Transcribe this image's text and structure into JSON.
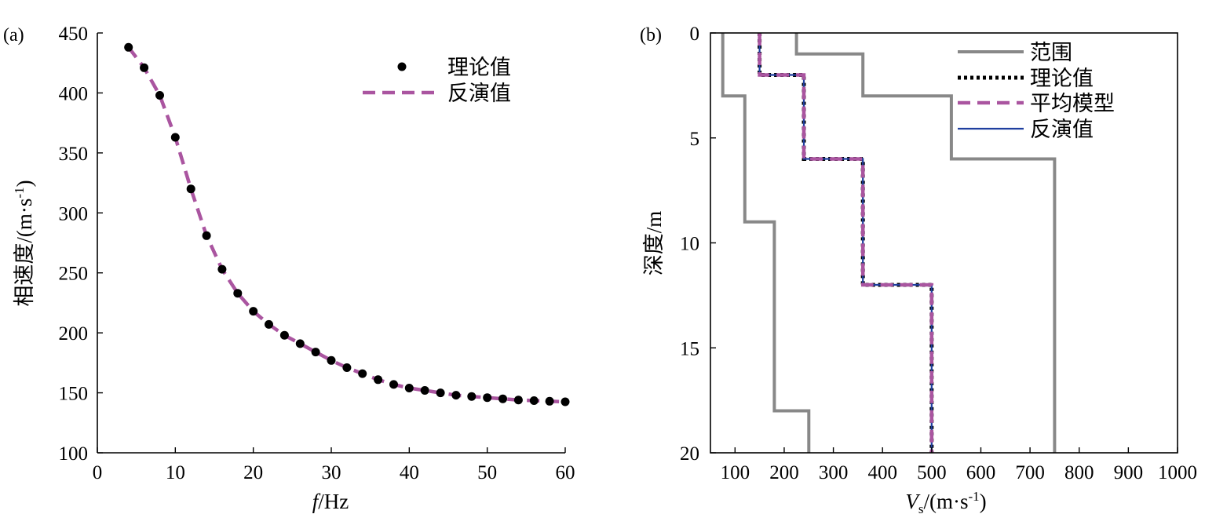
{
  "chart_data": [
    {
      "type": "scatter",
      "panel_label": "(a)",
      "xlabel_italic": "f",
      "xlabel_rest": "/Hz",
      "ylabel": "相速度/(m·s",
      "ylabel_sup": "-1",
      "ylabel_close": ")",
      "xlim": [
        0,
        60
      ],
      "ylim": [
        100,
        450
      ],
      "xticks": [
        "0",
        "10",
        "20",
        "30",
        "40",
        "50",
        "60"
      ],
      "yticks": [
        "100",
        "150",
        "200",
        "250",
        "300",
        "350",
        "400",
        "450"
      ],
      "legend_position": "top-right",
      "series": [
        {
          "name": "理论值",
          "style": "markers",
          "color": "#000000",
          "x": [
            4,
            6,
            8,
            10,
            12,
            14,
            16,
            18,
            20,
            22,
            24,
            26,
            28,
            30,
            32,
            34,
            36,
            38,
            40,
            42,
            44,
            46,
            48,
            50,
            52,
            54,
            56,
            58,
            60
          ],
          "y": [
            438,
            421,
            398,
            363,
            320,
            281,
            253,
            233,
            218,
            207,
            198,
            191,
            184,
            177,
            171,
            166,
            161,
            157,
            154,
            152,
            150,
            148,
            147,
            146,
            145,
            144,
            143.5,
            143,
            142.5
          ]
        },
        {
          "name": "反演值",
          "style": "dashed",
          "color": "#aa55a0",
          "x": [
            4,
            6,
            8,
            10,
            12,
            14,
            16,
            18,
            20,
            22,
            24,
            26,
            28,
            30,
            32,
            34,
            36,
            38,
            40,
            42,
            44,
            46,
            48,
            50,
            52,
            54,
            56,
            58,
            60
          ],
          "y": [
            438,
            421,
            398,
            363,
            320,
            281,
            253,
            233,
            218,
            207,
            198,
            191,
            184,
            177,
            171,
            166,
            161,
            157,
            154,
            152,
            150,
            148,
            147,
            146,
            145,
            144,
            143.5,
            143,
            142.5
          ]
        }
      ]
    },
    {
      "type": "line",
      "panel_label": "(b)",
      "xlabel_italic": "V",
      "xlabel_sub": "s",
      "xlabel_rest": "/(m·s",
      "xlabel_sup": "-1",
      "xlabel_close": ")",
      "ylabel": "深度/m",
      "xlim": [
        50,
        1000
      ],
      "ylim": [
        0,
        20
      ],
      "y_inverted": true,
      "xticks": [
        "100",
        "200",
        "300",
        "400",
        "500",
        "600",
        "700",
        "800",
        "900",
        "1000"
      ],
      "yticks": [
        "0",
        "5",
        "10",
        "15",
        "20"
      ],
      "legend_position": "top-right",
      "series": [
        {
          "name": "范围",
          "style": "solid-thick",
          "color": "#888888",
          "segments": [
            {
              "x": [
                75,
                75,
                120,
                120,
                180,
                180,
                250,
                250
              ],
              "y": [
                0,
                3,
                3,
                9,
                9,
                18,
                18,
                20
              ]
            },
            {
              "x": [
                225,
                225,
                360,
                360,
                540,
                540,
                750,
                750
              ],
              "y": [
                0,
                1,
                1,
                3,
                3,
                6,
                6,
                20
              ]
            }
          ]
        },
        {
          "name": "理论值",
          "style": "dotted",
          "color": "#000000",
          "x": [
            150,
            150,
            240,
            240,
            360,
            360,
            500,
            500
          ],
          "y": [
            0,
            2,
            2,
            6,
            6,
            12,
            12,
            20
          ]
        },
        {
          "name": "平均模型",
          "style": "dashed",
          "color": "#aa55a0",
          "x": [
            150,
            150,
            240,
            240,
            360,
            360,
            500,
            500
          ],
          "y": [
            0,
            2,
            2,
            6,
            6,
            12,
            12,
            20
          ]
        },
        {
          "name": "反演值",
          "style": "solid",
          "color": "#1f3f9f",
          "x": [
            150,
            150,
            240,
            240,
            360,
            360,
            500,
            500
          ],
          "y": [
            0,
            2,
            2,
            6,
            6,
            12,
            12,
            20
          ]
        }
      ]
    }
  ]
}
